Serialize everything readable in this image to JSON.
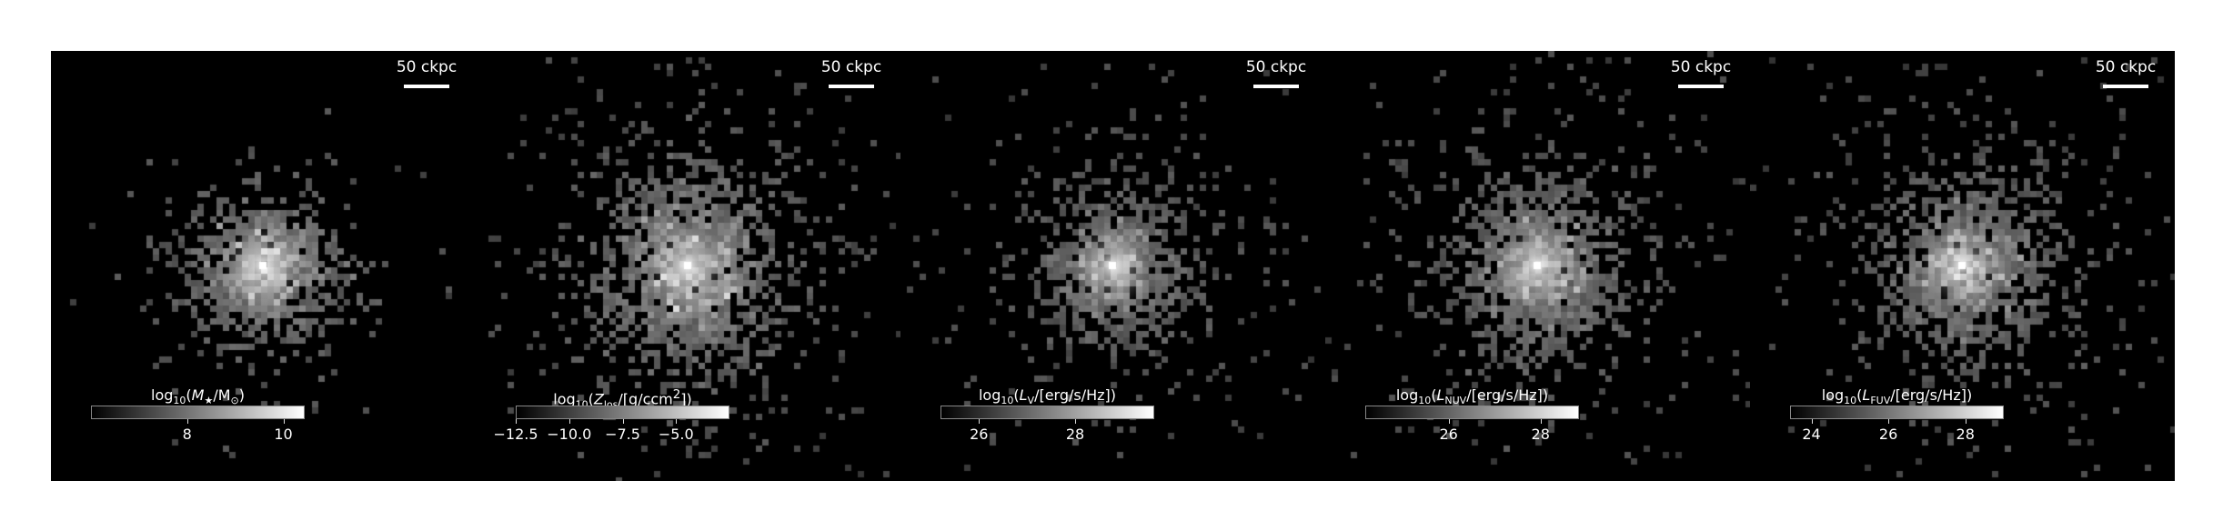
{
  "figure": {
    "panels": [
      {
        "id": "stellar-mass",
        "scale_label": "50 ckpc",
        "colorbar": {
          "pre": "log",
          "base": "10",
          "open": "(",
          "quantity": "M",
          "sub": "★",
          "unit_pre": "/M",
          "unit_sub": "⊙",
          "close": ")",
          "ticks": [
            "8",
            "10"
          ],
          "tick_pos": [
            0.45,
            0.9
          ]
        },
        "cloud": {
          "spread": 38,
          "halo": 68,
          "count": 900,
          "brightness": 0.85,
          "tilt": -0.2
        }
      },
      {
        "id": "metallicity",
        "scale_label": "50 ckpc",
        "colorbar": {
          "pre": "log",
          "base": "10",
          "open": "(",
          "quantity": "Z",
          "sub": "los",
          "unit_pre": "/[g/ccm",
          "unit_sup": "2",
          "close": "])",
          "ticks": [
            "−12.5",
            "−10.0",
            "−7.5",
            "−5.0"
          ],
          "tick_pos": [
            0.0,
            0.25,
            0.5,
            0.75
          ]
        },
        "cloud": {
          "spread": 55,
          "halo": 130,
          "count": 1500,
          "brightness": 0.95,
          "tilt": -0.7
        }
      },
      {
        "id": "v-band-luminosity",
        "scale_label": "50 ckpc",
        "colorbar": {
          "pre": "log",
          "base": "10",
          "open": "(",
          "quantity": "L",
          "sub": "V",
          "unit_pre": "/[erg/s/Hz]",
          "close": ")",
          "ticks": [
            "26",
            "28"
          ],
          "tick_pos": [
            0.18,
            0.63
          ]
        },
        "cloud": {
          "spread": 42,
          "halo": 110,
          "count": 1000,
          "brightness": 0.7,
          "tilt": -0.5
        }
      },
      {
        "id": "nuv-luminosity",
        "scale_label": "50 ckpc",
        "colorbar": {
          "pre": "log",
          "base": "10",
          "open": "(",
          "quantity": "L",
          "sub": "NUV",
          "unit_pre": "/[erg/s/Hz]",
          "close": ")",
          "ticks": [
            "26",
            "28"
          ],
          "tick_pos": [
            0.39,
            0.82
          ]
        },
        "cloud": {
          "spread": 48,
          "halo": 120,
          "count": 1300,
          "brightness": 0.8,
          "tilt": -0.5
        }
      },
      {
        "id": "fuv-luminosity",
        "scale_label": "50 ckpc",
        "colorbar": {
          "pre": "log",
          "base": "10",
          "open": "(",
          "quantity": "L",
          "sub": "FUV",
          "unit_pre": "/[erg/s/Hz]",
          "close": ")",
          "ticks": [
            "24",
            "26",
            "28"
          ],
          "tick_pos": [
            0.1,
            0.46,
            0.82
          ]
        },
        "cloud": {
          "spread": 48,
          "halo": 120,
          "count": 1300,
          "brightness": 0.8,
          "tilt": -0.5
        }
      }
    ]
  }
}
